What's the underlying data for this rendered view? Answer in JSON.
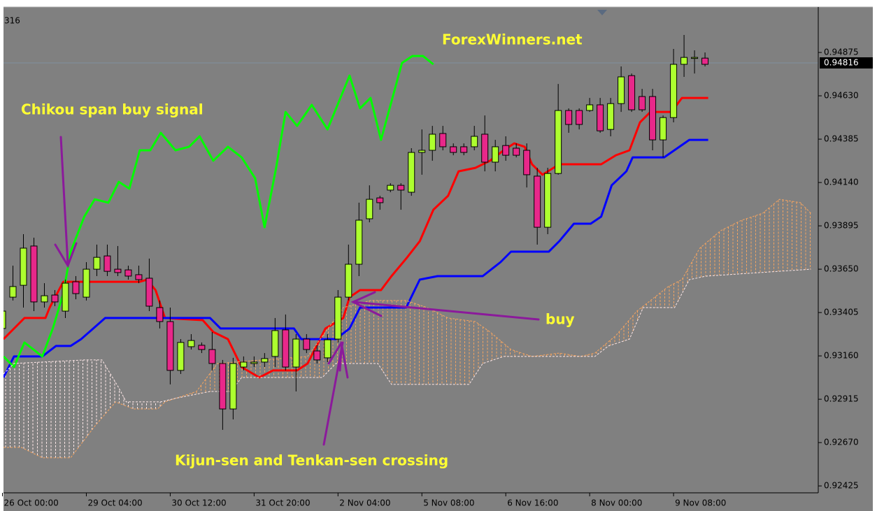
{
  "header_text": "316",
  "chart_data": {
    "type": "candlestick",
    "annotations": [
      {
        "text": "ForexWinners.net"
      },
      {
        "text": "Chikou span buy signal"
      },
      {
        "text": "buy"
      },
      {
        "text": "Kijun-sen and Tenkan-sen crossing"
      }
    ],
    "categories": [
      "26 Oct 00:00",
      null,
      null,
      null,
      null,
      null,
      null,
      null,
      "29 Oct 04:00",
      null,
      null,
      null,
      null,
      null,
      null,
      null,
      "30 Oct 12:00",
      null,
      null,
      null,
      null,
      null,
      null,
      null,
      "31 Oct 20:00",
      null,
      null,
      null,
      null,
      null,
      null,
      null,
      "2 Nov 04:00",
      null,
      null,
      null,
      null,
      null,
      null,
      null,
      "5 Nov 08:00",
      null,
      null,
      null,
      null,
      null,
      null,
      null,
      "6 Nov 16:00",
      null,
      null,
      null,
      null,
      null,
      null,
      null,
      "8 Nov 00:00",
      null,
      null,
      null,
      null,
      null,
      null,
      null,
      "9 Nov 08:00",
      null,
      null,
      null
    ],
    "open": [
      0.93315,
      0.93492,
      0.93559,
      0.93781,
      0.93465,
      0.93504,
      0.93413,
      0.93579,
      0.93492,
      0.9365,
      0.93725,
      0.9365,
      0.93646,
      0.93619,
      0.93599,
      0.93433,
      0.93354,
      0.93078,
      0.93212,
      0.9322,
      0.93196,
      0.93117,
      0.9286,
      0.93097,
      0.93117,
      0.93125,
      0.93157,
      0.93307,
      0.93097,
      0.93255,
      0.93188,
      0.93149,
      0.93255,
      0.93492,
      0.93678,
      0.93935,
      0.94053,
      0.94097,
      0.94124,
      0.94085,
      0.9431,
      0.94322,
      0.94417,
      0.94342,
      0.94342,
      0.94342,
      0.94413,
      0.94255,
      0.94349,
      0.94334,
      0.94322,
      0.94176,
      0.93887,
      0.94191,
      0.94547,
      0.94547,
      0.94547,
      0.94579,
      0.9444,
      0.94586,
      0.94744,
      0.94626,
      0.94626,
      0.94381,
      0.94507,
      0.94808,
      0.94843,
      0.94843
    ],
    "high": [
      0.93453,
      0.9367,
      0.93848,
      0.93828,
      0.93571,
      0.93532,
      0.93591,
      0.93611,
      0.9369,
      0.93789,
      0.93789,
      0.93781,
      0.9367,
      0.9367,
      0.9371,
      0.93473,
      0.93433,
      0.93255,
      0.93283,
      0.93236,
      0.93295,
      0.93137,
      0.93149,
      0.93157,
      0.93157,
      0.93176,
      0.93374,
      0.93394,
      0.93283,
      0.93283,
      0.9322,
      0.93283,
      0.93532,
      0.93789,
      0.94026,
      0.94124,
      0.94065,
      0.94136,
      0.94136,
      0.94334,
      0.9444,
      0.9446,
      0.9446,
      0.94361,
      0.94361,
      0.9446,
      0.94519,
      0.94381,
      0.94401,
      0.94361,
      0.94361,
      0.94223,
      0.94223,
      0.94697,
      0.94559,
      0.94559,
      0.94618,
      0.94618,
      0.94618,
      0.94796,
      0.94756,
      0.94669,
      0.94669,
      0.94519,
      0.94895,
      0.94974,
      0.94887,
      0.94875
    ],
    "low": [
      0.93275,
      0.93473,
      0.93433,
      0.93413,
      0.93433,
      0.93441,
      0.93374,
      0.9348,
      0.93473,
      0.93611,
      0.93611,
      0.93611,
      0.93591,
      0.93571,
      0.93413,
      0.93315,
      0.92999,
      0.93058,
      0.93196,
      0.93176,
      0.93078,
      0.92742,
      0.92801,
      0.93078,
      0.93097,
      0.93097,
      0.93097,
      0.93078,
      0.92959,
      0.93176,
      0.93117,
      0.93125,
      0.93236,
      0.93473,
      0.93611,
      0.93915,
      0.93986,
      0.94085,
      0.93986,
      0.94065,
      0.94184,
      0.94263,
      0.94322,
      0.94294,
      0.94294,
      0.94322,
      0.94203,
      0.94203,
      0.94263,
      0.94282,
      0.94112,
      0.93789,
      0.93848,
      0.94184,
      0.94421,
      0.9444,
      0.94539,
      0.94421,
      0.94401,
      0.94539,
      0.94539,
      0.94539,
      0.94322,
      0.94282,
      0.9448,
      0.94737,
      0.94756,
      0.94796
    ],
    "close": [
      0.93413,
      0.93552,
      0.93769,
      0.93465,
      0.935,
      0.93465,
      0.93571,
      0.93512,
      0.9365,
      0.93717,
      0.93638,
      0.93631,
      0.93611,
      0.93591,
      0.93441,
      0.93354,
      0.93078,
      0.93236,
      0.93247,
      0.93196,
      0.93117,
      0.9286,
      0.93117,
      0.93125,
      0.93125,
      0.93145,
      0.93303,
      0.93097,
      0.93255,
      0.93196,
      0.93137,
      0.93251,
      0.93492,
      0.93678,
      0.93927,
      0.94045,
      0.94026,
      0.94124,
      0.94097,
      0.9431,
      0.94322,
      0.94413,
      0.94342,
      0.9431,
      0.9431,
      0.94401,
      0.94255,
      0.94342,
      0.94294,
      0.94294,
      0.94184,
      0.93887,
      0.94191,
      0.94547,
      0.94468,
      0.94468,
      0.94579,
      0.94432,
      0.94586,
      0.94737,
      0.94551,
      0.94551,
      0.94381,
      0.94507,
      0.94808,
      0.94847,
      0.94847,
      0.94808
    ],
    "up_color": "#adff2f",
    "down_color": "#e8288a",
    "lines": [
      {
        "color": "#ff0000",
        "style": "solid",
        "x": [
          0.1,
          2.1,
          4.1,
          4.5,
          5.8,
          13.1,
          13.8,
          14.6,
          15.5,
          19.1,
          20.1,
          21.5,
          22.8,
          24.5,
          25.8,
          28.1,
          29.1,
          30.8,
          32.5,
          33.1,
          34.1,
          36.1,
          37.1,
          38.5,
          39.8,
          41.1,
          42.5,
          43.5,
          45.1,
          46.5,
          47.8,
          48.8,
          49.8,
          50.5,
          51.5,
          53.1,
          57.1,
          58.5,
          59.8,
          60.8,
          61.8,
          63.8,
          64.8,
          67.3
        ],
        "values": [
          0.93255,
          0.93374,
          0.93374,
          0.93433,
          0.93579,
          0.93579,
          0.93591,
          0.93532,
          0.93374,
          0.93362,
          0.93295,
          0.93255,
          0.93097,
          0.93038,
          0.93078,
          0.93078,
          0.93117,
          0.93315,
          0.93374,
          0.93492,
          0.93532,
          0.93532,
          0.93611,
          0.9371,
          0.93808,
          0.93986,
          0.94065,
          0.94203,
          0.94223,
          0.94263,
          0.94322,
          0.94361,
          0.94342,
          0.94243,
          0.94184,
          0.94243,
          0.94243,
          0.94294,
          0.94322,
          0.9448,
          0.94539,
          0.94539,
          0.94618,
          0.94618
        ]
      },
      {
        "color": "#0000ff",
        "style": "solid",
        "x": [
          0.1,
          1.1,
          3.8,
          5.1,
          6.5,
          7.5,
          9.8,
          19.8,
          20.8,
          27.8,
          28.5,
          31.8,
          33.1,
          34.1,
          38.5,
          39.8,
          41.5,
          45.8,
          47.5,
          48.5,
          52.1,
          53.1,
          54.5,
          56.1,
          57.1,
          58.1,
          59.5,
          60.1,
          63.1,
          65.5,
          67.3
        ],
        "values": [
          0.93038,
          0.93157,
          0.93157,
          0.93216,
          0.93216,
          0.93255,
          0.93374,
          0.93374,
          0.93315,
          0.93315,
          0.93255,
          0.93255,
          0.93315,
          0.93433,
          0.93433,
          0.93591,
          0.93611,
          0.93611,
          0.9369,
          0.93749,
          0.93749,
          0.93808,
          0.93907,
          0.93907,
          0.93947,
          0.94124,
          0.94203,
          0.94282,
          0.94282,
          0.94381,
          0.94381
        ]
      },
      {
        "color": "#00ff00",
        "style": "solid",
        "x": [
          0.1,
          1.1,
          2.1,
          3.8,
          4.8,
          5.8,
          6.5,
          7.8,
          8.8,
          10.1,
          11.1,
          12.1,
          13.1,
          14.1,
          15.1,
          16.5,
          17.8,
          18.8,
          20.1,
          21.5,
          22.8,
          24.1,
          25.0,
          26.1,
          27.0,
          28.1,
          29.5,
          31.0,
          33.1,
          34.1,
          35.1,
          36.1,
          38.1,
          39.1,
          40.1,
          41.1
        ],
        "values": [
          0.93157,
          0.93097,
          0.93236,
          0.93157,
          0.93315,
          0.93512,
          0.93749,
          0.93947,
          0.94045,
          0.94026,
          0.94144,
          0.94105,
          0.94322,
          0.94322,
          0.94421,
          0.94322,
          0.94342,
          0.94401,
          0.94263,
          0.94342,
          0.94282,
          0.94164,
          0.93887,
          0.94223,
          0.94539,
          0.9446,
          0.94579,
          0.9444,
          0.94744,
          0.94559,
          0.94618,
          0.94381,
          0.94816,
          0.94855,
          0.94855,
          0.94808
        ]
      },
      {
        "color": "#f4a460",
        "style": "dashed",
        "x": [
          0.1,
          1.8,
          3.8,
          6.5,
          8.8,
          10.8,
          12.5,
          14.8,
          15.5,
          18.5,
          20.5,
          29.1,
          32.5,
          35.1,
          38.5,
          40.5,
          42.5,
          45.1,
          46.5,
          48.5,
          50.5,
          53.1,
          55.1,
          56.5,
          58.5,
          60.5,
          61.8,
          63.5,
          64.8,
          66.5,
          68.5,
          70.5,
          72.5,
          74.1,
          76.1,
          77.1
        ],
        "values": [
          0.92643,
          0.92643,
          0.92584,
          0.92584,
          0.92762,
          0.929,
          0.9286,
          0.9286,
          0.929,
          0.92959,
          0.93117,
          0.93157,
          0.93433,
          0.93473,
          0.93473,
          0.93433,
          0.93374,
          0.93354,
          0.93295,
          0.93196,
          0.93157,
          0.93176,
          0.93157,
          0.93176,
          0.93275,
          0.93413,
          0.93473,
          0.93552,
          0.93591,
          0.93769,
          0.93868,
          0.93927,
          0.93966,
          0.94045,
          0.94026,
          0.93966
        ]
      },
      {
        "color": "#ffe8e8",
        "style": "dashed",
        "x": [
          0.1,
          1.1,
          7.8,
          9.5,
          11.1,
          11.8,
          15.1,
          16.5,
          19.8,
          21.8,
          22.8,
          30.5,
          31.8,
          35.8,
          37.1,
          44.5,
          45.8,
          47.8,
          56.5,
          57.8,
          59.8,
          61.1,
          64.1,
          65.5,
          67.1,
          77.1
        ],
        "values": [
          0.93058,
          0.93117,
          0.93137,
          0.93137,
          0.92979,
          0.929,
          0.929,
          0.9292,
          0.92959,
          0.92959,
          0.93038,
          0.93038,
          0.93117,
          0.93117,
          0.92999,
          0.92999,
          0.93117,
          0.93157,
          0.93157,
          0.93216,
          0.93255,
          0.93433,
          0.93433,
          0.93591,
          0.93611,
          0.9365
        ]
      }
    ],
    "last_price": 0.94816,
    "xlim": [
      0.1,
      77.8
    ],
    "ylim": [
      0.92386,
      0.95132
    ],
    "yticks": [
      0.94875,
      {
        "value": 0.9463,
        "label": "0.94630"
      },
      0.94385,
      {
        "value": 0.9414,
        "label": "0.94140"
      },
      0.93895,
      {
        "value": 0.9365,
        "label": "0.93650"
      },
      0.93405,
      {
        "value": 0.9316,
        "label": "0.93160"
      },
      0.92915,
      {
        "value": 0.9267,
        "label": "0.92670"
      },
      0.92425
    ]
  }
}
